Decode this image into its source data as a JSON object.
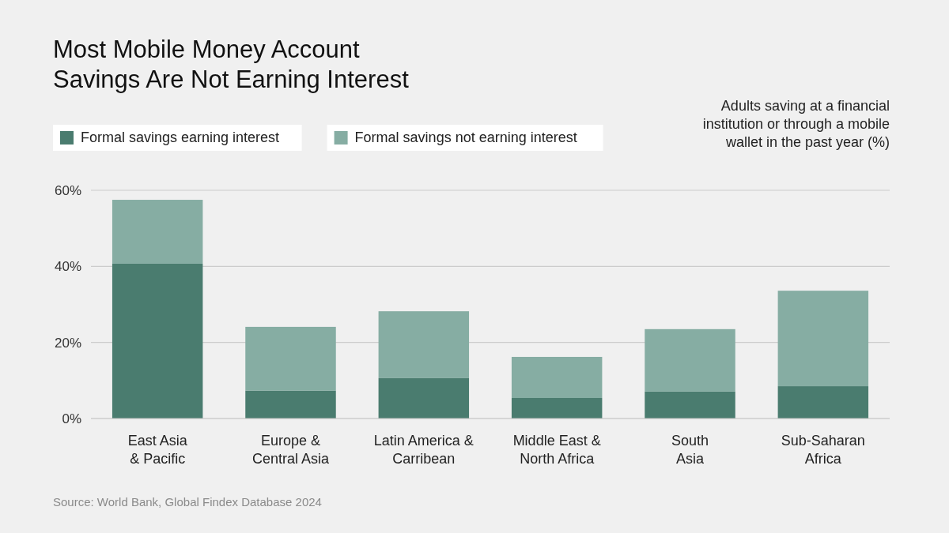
{
  "chart_data": {
    "type": "bar",
    "stacked": true,
    "title": "Most Mobile Money Account\nSavings Are Not Earning Interest",
    "ylabel": "Adults saving at a financial\ninstitution or through a mobile\nwallet in the past year (%)",
    "categories": [
      "East Asia\n& Pacific",
      "Europe &\nCentral Asia",
      "Latin America &\nCarribean",
      "Middle East &\nNorth Africa",
      "South\nAsia",
      "Sub-Saharan\nAfrica"
    ],
    "series": [
      {
        "name": "Formal savings earning interest",
        "color": "#4a7c6f",
        "values": [
          40.7,
          7.3,
          10.6,
          5.4,
          7.1,
          8.5
        ]
      },
      {
        "name": "Formal savings not earning interest",
        "color": "#86ada3",
        "values": [
          16.8,
          16.8,
          17.6,
          10.8,
          16.4,
          25.1
        ]
      }
    ],
    "ylim": [
      0,
      60
    ],
    "yticks": [
      {
        "value": 0,
        "label": "0%"
      },
      {
        "value": 20,
        "label": "20%"
      },
      {
        "value": 40,
        "label": "40%"
      },
      {
        "value": 60,
        "label": "60%"
      }
    ],
    "grid": "y",
    "legend": "top left",
    "annotations": [
      "Source: World Bank, Global Findex Database 2024"
    ]
  }
}
